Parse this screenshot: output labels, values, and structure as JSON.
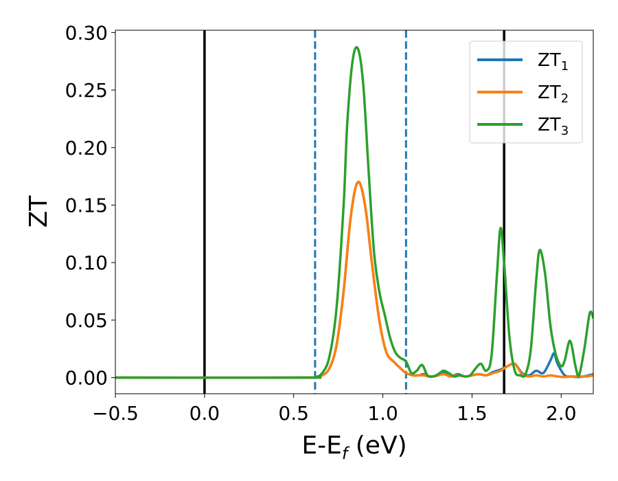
{
  "chart_data": {
    "type": "line",
    "xlabel": "E-E",
    "xlabel_sub": "f",
    "xlabel_unit": " (eV)",
    "ylabel": "ZT",
    "xlim": [
      -0.5,
      2.18
    ],
    "ylim": [
      -0.014,
      0.302
    ],
    "xticks": [
      -0.5,
      0.0,
      0.5,
      1.0,
      1.5,
      2.0
    ],
    "xtick_labels": [
      "−0.5",
      "0.0",
      "0.5",
      "1.0",
      "1.5",
      "2.0"
    ],
    "yticks": [
      0.0,
      0.05,
      0.1,
      0.15,
      0.2,
      0.25,
      0.3
    ],
    "ytick_labels": [
      "0.00",
      "0.05",
      "0.10",
      "0.15",
      "0.20",
      "0.25",
      "0.30"
    ],
    "legend_position": "upper right",
    "vlines": [
      {
        "x": 0.0,
        "style": "solid",
        "color": "#000000"
      },
      {
        "x": 0.62,
        "style": "dashed",
        "color": "#1f77b4"
      },
      {
        "x": 1.13,
        "style": "dashed",
        "color": "#1f77b4"
      },
      {
        "x": 1.68,
        "style": "solid",
        "color": "#000000"
      }
    ],
    "series": [
      {
        "name": "ZT",
        "sub": "1",
        "color": "#1f77b4",
        "x": [
          -0.5,
          0.55,
          0.62,
          0.66,
          0.7,
          0.74,
          0.78,
          0.82,
          0.86,
          0.9,
          0.94,
          0.98,
          1.02,
          1.06,
          1.1,
          1.13,
          1.17,
          1.2,
          1.23,
          1.26,
          1.3,
          1.34,
          1.38,
          1.42,
          1.46,
          1.5,
          1.54,
          1.58,
          1.62,
          1.66,
          1.7,
          1.74,
          1.78,
          1.82,
          1.86,
          1.9,
          1.94,
          1.96,
          1.98,
          2.02,
          2.06,
          2.1,
          2.14,
          2.18
        ],
        "y": [
          0,
          0,
          0.0005,
          0.002,
          0.008,
          0.028,
          0.075,
          0.14,
          0.17,
          0.15,
          0.098,
          0.05,
          0.022,
          0.014,
          0.008,
          0.004,
          0.002,
          0.002,
          0.003,
          0.001,
          0.0015,
          0.004,
          0.001,
          0.003,
          0.001,
          0.002,
          0.003,
          0.002,
          0.005,
          0.007,
          0.01,
          0.012,
          0.004,
          0.002,
          0.006,
          0.004,
          0.015,
          0.021,
          0.012,
          0.002,
          0.001,
          0.0005,
          0.0015,
          0.003
        ]
      },
      {
        "name": "ZT",
        "sub": "2",
        "color": "#ff7f0e",
        "x": [
          -0.5,
          0.55,
          0.62,
          0.66,
          0.7,
          0.74,
          0.78,
          0.82,
          0.86,
          0.9,
          0.94,
          0.98,
          1.02,
          1.06,
          1.1,
          1.13,
          1.17,
          1.2,
          1.23,
          1.26,
          1.3,
          1.34,
          1.38,
          1.42,
          1.46,
          1.5,
          1.54,
          1.58,
          1.62,
          1.66,
          1.7,
          1.74,
          1.78,
          1.82,
          1.86,
          1.9,
          1.94,
          1.98,
          2.02,
          2.06,
          2.1,
          2.14,
          2.18
        ],
        "y": [
          0,
          0,
          0.0005,
          0.002,
          0.008,
          0.028,
          0.075,
          0.14,
          0.17,
          0.15,
          0.098,
          0.05,
          0.022,
          0.014,
          0.008,
          0.004,
          0.002,
          0.002,
          0.002,
          0.001,
          0.0015,
          0.003,
          0.001,
          0.002,
          0.001,
          0.002,
          0.003,
          0.002,
          0.004,
          0.006,
          0.01,
          0.012,
          0.003,
          0.001,
          0.002,
          0.001,
          0.002,
          0.001,
          0.0005,
          0.001,
          0.001,
          0.001,
          0.002
        ]
      },
      {
        "name": "ZT",
        "sub": "3",
        "color": "#2ca02c",
        "x": [
          -0.5,
          0.55,
          0.62,
          0.66,
          0.7,
          0.74,
          0.78,
          0.8,
          0.83,
          0.86,
          0.89,
          0.92,
          0.95,
          0.98,
          1.01,
          1.04,
          1.07,
          1.1,
          1.13,
          1.16,
          1.19,
          1.22,
          1.25,
          1.28,
          1.31,
          1.34,
          1.37,
          1.4,
          1.43,
          1.46,
          1.49,
          1.52,
          1.55,
          1.58,
          1.61,
          1.64,
          1.66,
          1.68,
          1.71,
          1.74,
          1.77,
          1.8,
          1.83,
          1.86,
          1.88,
          1.91,
          1.94,
          1.97,
          2.0,
          2.02,
          2.05,
          2.08,
          2.1,
          2.13,
          2.16,
          2.18
        ],
        "y": [
          0,
          0,
          0.0005,
          0.004,
          0.018,
          0.06,
          0.15,
          0.22,
          0.275,
          0.286,
          0.255,
          0.18,
          0.11,
          0.075,
          0.055,
          0.035,
          0.022,
          0.017,
          0.014,
          0.004,
          0.006,
          0.011,
          0.002,
          0.001,
          0.003,
          0.006,
          0.004,
          0.001,
          0.002,
          0.001,
          0.002,
          0.008,
          0.012,
          0.006,
          0.02,
          0.09,
          0.13,
          0.1,
          0.035,
          0.006,
          0.002,
          0.003,
          0.025,
          0.085,
          0.111,
          0.09,
          0.045,
          0.02,
          0.01,
          0.015,
          0.032,
          0.01,
          0.002,
          0.025,
          0.056,
          0.052
        ]
      }
    ]
  }
}
